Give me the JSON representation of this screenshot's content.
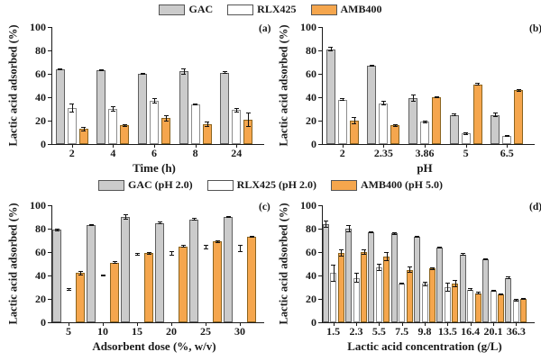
{
  "figure": {
    "top_legend": [
      {
        "label": "GAC",
        "fill": "#cbcbcb",
        "stroke": "#606060"
      },
      {
        "label": "RLX425",
        "fill": "#ffffff",
        "stroke": "#8c8c8c"
      },
      {
        "label": "AMB400",
        "fill": "#f5a64d",
        "stroke": "#8a6420"
      }
    ],
    "middle_legend": [
      {
        "label": "GAC (pH 2.0)",
        "fill": "#cbcbcb",
        "stroke": "#606060"
      },
      {
        "label": "RLX425 (pH 2.0)",
        "fill": "#ffffff",
        "stroke": "#8c8c8c"
      },
      {
        "label": "AMB400 (pH 5.0)",
        "fill": "#f5a64d",
        "stroke": "#8a6420"
      }
    ]
  },
  "chart_data": [
    {
      "type": "bar",
      "panel_label": "(a)",
      "xlabel": "Time (h)",
      "ylabel": "Lactic acid adsorbed (%)",
      "ylim": [
        0,
        100
      ],
      "yticks": [
        0,
        20,
        40,
        60,
        80,
        100
      ],
      "grid": false,
      "legend_position": "top-center",
      "categories": [
        "2",
        "4",
        "6",
        "8",
        "24"
      ],
      "series": [
        {
          "name": "GAC",
          "fill": "#cbcbcb",
          "stroke": "#606060",
          "values": [
            64,
            63,
            60,
            62,
            61
          ],
          "errors": [
            1,
            1,
            1,
            3,
            1
          ]
        },
        {
          "name": "RLX425",
          "fill": "#ffffff",
          "stroke": "#8c8c8c",
          "values": [
            31,
            30,
            37,
            34,
            29
          ],
          "errors": [
            4,
            2,
            2,
            1,
            2
          ]
        },
        {
          "name": "AMB400",
          "fill": "#f5a64d",
          "stroke": "#8a6420",
          "values": [
            13,
            16,
            22,
            17,
            21
          ],
          "errors": [
            2,
            1,
            3,
            2,
            6
          ]
        }
      ]
    },
    {
      "type": "bar",
      "panel_label": "(b)",
      "xlabel": "pH",
      "ylabel": "Lactic acid adsorbed (%)",
      "ylim": [
        0,
        100
      ],
      "yticks": [
        0,
        20,
        40,
        60,
        80,
        100
      ],
      "grid": false,
      "legend_position": "top-center",
      "categories": [
        "2",
        "2.35",
        "3.86",
        "5",
        "6.5"
      ],
      "series": [
        {
          "name": "GAC",
          "fill": "#cbcbcb",
          "stroke": "#606060",
          "values": [
            81,
            67,
            39,
            25,
            25
          ],
          "errors": [
            2,
            1,
            3,
            1,
            2
          ]
        },
        {
          "name": "RLX425",
          "fill": "#ffffff",
          "stroke": "#8c8c8c",
          "values": [
            38,
            35,
            19,
            9,
            7
          ],
          "errors": [
            1,
            2,
            1,
            1,
            1
          ]
        },
        {
          "name": "AMB400",
          "fill": "#f5a64d",
          "stroke": "#8a6420",
          "values": [
            20,
            16,
            40,
            51,
            46
          ],
          "errors": [
            3,
            1,
            1,
            1,
            1
          ]
        }
      ]
    },
    {
      "type": "bar",
      "panel_label": "(c)",
      "xlabel": "Adsorbent dose (%, w/v)",
      "ylabel": "Lactic acid adsorbed (%)",
      "ylim": [
        0,
        100
      ],
      "yticks": [
        0,
        20,
        40,
        60,
        80,
        100
      ],
      "grid": false,
      "legend_position": "top-center",
      "categories": [
        "5",
        "10",
        "15",
        "20",
        "25",
        "30"
      ],
      "series": [
        {
          "name": "GAC (pH 2.0)",
          "fill": "#cbcbcb",
          "stroke": "#606060",
          "values": [
            79,
            83,
            90,
            85,
            88,
            90
          ],
          "errors": [
            1,
            1,
            2,
            1,
            1,
            1
          ]
        },
        {
          "name": "RLX425 (pH 2.0)",
          "fill": "#ffffff",
          "stroke": "#ffffff",
          "values": [
            28,
            40,
            58,
            59,
            64,
            63
          ],
          "errors": [
            1,
            1,
            1,
            2,
            2,
            3
          ]
        },
        {
          "name": "AMB400 (pH 5.0)",
          "fill": "#f5a64d",
          "stroke": "#8a6420",
          "values": [
            42,
            51,
            59,
            65,
            69,
            73
          ],
          "errors": [
            2,
            1,
            1,
            1,
            1,
            1
          ]
        }
      ]
    },
    {
      "type": "bar",
      "panel_label": "(d)",
      "xlabel": "Lactic acid concentration (g/L)",
      "ylabel": "Lactic acid adsorbed (%)",
      "ylim": [
        0,
        100
      ],
      "yticks": [
        0,
        20,
        40,
        60,
        80,
        100
      ],
      "grid": false,
      "legend_position": "top-center",
      "categories": [
        "1.5",
        "2.3",
        "5.5",
        "7.5",
        "9.8",
        "13.5",
        "16.4",
        "20.1",
        "36.3"
      ],
      "series": [
        {
          "name": "GAC (pH 2.0)",
          "fill": "#cbcbcb",
          "stroke": "#606060",
          "values": [
            84,
            80,
            77,
            76,
            73,
            64,
            58,
            54,
            38
          ],
          "errors": [
            3,
            3,
            1,
            1,
            1,
            1,
            1,
            1,
            1
          ]
        },
        {
          "name": "RLX425 (pH 2.0)",
          "fill": "#ffffff",
          "stroke": "#8c8c8c",
          "values": [
            42,
            38,
            47,
            33,
            33,
            30,
            28,
            27,
            19
          ],
          "errors": [
            7,
            4,
            3,
            1,
            2,
            4,
            1,
            1,
            1
          ]
        },
        {
          "name": "AMB400 (pH 5.0)",
          "fill": "#f5a64d",
          "stroke": "#8a6420",
          "values": [
            59,
            60,
            56,
            45,
            46,
            33,
            25,
            24,
            20
          ],
          "errors": [
            3,
            2,
            4,
            3,
            1,
            3,
            1,
            1,
            1
          ]
        }
      ]
    }
  ]
}
